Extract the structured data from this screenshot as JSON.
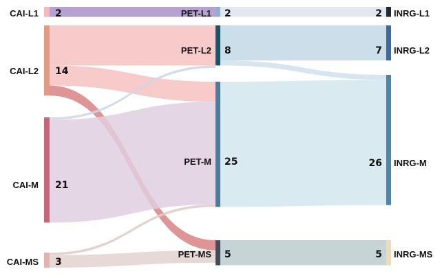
{
  "chart_data": {
    "type": "sankey",
    "title": "",
    "stages": [
      {
        "id": "cai",
        "nodes": [
          {
            "id": "CAI-L1",
            "label": "CAI-L1",
            "value": 2,
            "value_label": "2",
            "color": "#f6b8b8"
          },
          {
            "id": "CAI-L2",
            "label": "CAI-L2",
            "value": 14,
            "value_label": "14",
            "color": "#e39a7e"
          },
          {
            "id": "CAI-M",
            "label": "CAI-M",
            "value": 21,
            "value_label": "21",
            "color": "#c9657a"
          },
          {
            "id": "CAI-MS",
            "label": "CAI-MS",
            "value": 3,
            "value_label": "3",
            "color": "#e3b3b1"
          }
        ]
      },
      {
        "id": "pet",
        "nodes": [
          {
            "id": "PET-L1",
            "label": "PET-L1",
            "value": 2,
            "value_label": "2",
            "color": "#89b3cf"
          },
          {
            "id": "PET-L2",
            "label": "PET-L2",
            "value": 8,
            "value_label": "8",
            "color": "#14566e"
          },
          {
            "id": "PET-M",
            "label": "PET-M",
            "value": 25,
            "value_label": "25",
            "color": "#467da0"
          },
          {
            "id": "PET-MS",
            "label": "PET-MS",
            "value": 5,
            "value_label": "5",
            "color": "#3f4e5a"
          }
        ]
      },
      {
        "id": "inrg",
        "nodes": [
          {
            "id": "INRG-L1",
            "label": "INRG-L1",
            "value": 2,
            "value_label": "2",
            "color": "#1d2a34"
          },
          {
            "id": "INRG-L2",
            "label": "INRG-L2",
            "value": 7,
            "value_label": "7",
            "color": "#3c6aa0"
          },
          {
            "id": "INRG-M",
            "label": "INRG-M",
            "value": 26,
            "value_label": "26",
            "color": "#4b86ad"
          },
          {
            "id": "INRG-MS",
            "label": "INRG-MS",
            "value": 5,
            "value_label": "5",
            "color": "#f2dab4"
          }
        ]
      }
    ],
    "links": [
      {
        "source": "CAI-L1",
        "target": "PET-L1",
        "value": 2,
        "color": "#a892c8"
      },
      {
        "source": "CAI-L2",
        "target": "PET-L2",
        "value": 8,
        "color": "#f7c2c2"
      },
      {
        "source": "CAI-L2",
        "target": "PET-M",
        "value": 4,
        "color": "#f7c2c2"
      },
      {
        "source": "CAI-L2",
        "target": "PET-MS",
        "value": 2,
        "color": "#d98282"
      },
      {
        "source": "CAI-M",
        "target": "PET-L2",
        "value": 0.5,
        "color": "#cfd6e6"
      },
      {
        "source": "CAI-M",
        "target": "PET-M",
        "value": 20.5,
        "color": "#e0cfe0"
      },
      {
        "source": "CAI-MS",
        "target": "PET-M",
        "value": 0.5,
        "color": "#dfcaca"
      },
      {
        "source": "CAI-MS",
        "target": "PET-MS",
        "value": 2.5,
        "color": "#e3d3cf"
      },
      {
        "source": "PET-L1",
        "target": "INRG-L1",
        "value": 2,
        "color": "#dde4ea"
      },
      {
        "source": "PET-L2",
        "target": "INRG-L2",
        "value": 7,
        "color": "#c4d8e8"
      },
      {
        "source": "PET-L2",
        "target": "INRG-M",
        "value": 1,
        "color": "#cfe1ec"
      },
      {
        "source": "PET-M",
        "target": "INRG-M",
        "value": 25,
        "color": "#d3e6ef"
      },
      {
        "source": "PET-MS",
        "target": "INRG-MS",
        "value": 5,
        "color": "#bdcdcf"
      }
    ]
  }
}
